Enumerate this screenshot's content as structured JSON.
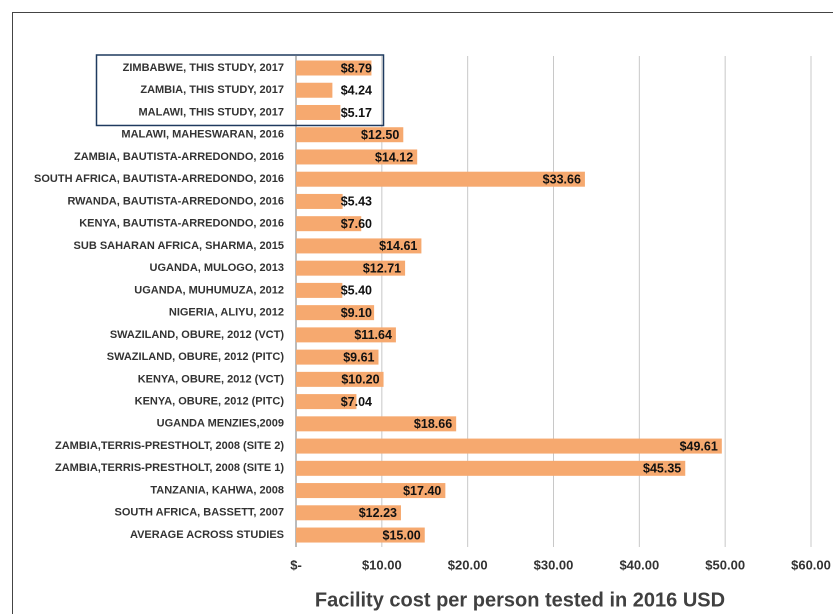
{
  "chart_data": {
    "type": "bar",
    "orientation": "horizontal",
    "x_label": "Facility cost per person tested in 2016 USD",
    "categories": [
      "ZIMBABWE, THIS STUDY, 2017",
      "ZAMBIA, THIS STUDY, 2017",
      "MALAWI, THIS STUDY, 2017",
      "MALAWI, MAHESWARAN, 2016",
      "ZAMBIA, BAUTISTA-ARREDONDO, 2016",
      "SOUTH AFRICA, BAUTISTA-ARREDONDO, 2016",
      "RWANDA, BAUTISTA-ARREDONDO, 2016",
      "KENYA, BAUTISTA-ARREDONDO, 2016",
      "SUB SAHARAN AFRICA, SHARMA, 2015",
      "UGANDA, MULOGO, 2013",
      "UGANDA, MUHUMUZA, 2012",
      "NIGERIA, ALIYU, 2012",
      "SWAZILAND, OBURE, 2012 (VCT)",
      "SWAZILAND, OBURE, 2012 (PITC)",
      "KENYA, OBURE, 2012 (VCT)",
      "KENYA, OBURE, 2012 (PITC)",
      "UGANDA MENZIES,2009",
      "ZAMBIA,TERRIS-PRESTHOLT, 2008 (SITE 2)",
      "ZAMBIA,TERRIS-PRESTHOLT, 2008 (SITE 1)",
      "TANZANIA, KAHWA, 2008",
      "SOUTH AFRICA, BASSETT, 2007",
      "AVERAGE ACROSS STUDIES"
    ],
    "values": [
      8.79,
      4.24,
      5.17,
      12.5,
      14.12,
      33.66,
      5.43,
      7.6,
      14.61,
      12.71,
      5.4,
      9.1,
      11.64,
      9.61,
      10.2,
      7.04,
      18.66,
      49.61,
      45.35,
      17.4,
      12.23,
      15.0
    ],
    "value_labels": [
      "$8.79",
      "$4.24",
      "$5.17",
      "$12.50",
      "$14.12",
      "$33.66",
      "$5.43",
      "$7.60",
      "$14.61",
      "$12.71",
      "$5.40",
      "$9.10",
      "$11.64",
      "$9.61",
      "$10.20",
      "$7.04",
      "$18.66",
      "$49.61",
      "$45.35",
      "$17.40",
      "$12.23",
      "$15.00"
    ],
    "color": "#f6a96f",
    "xlim": [
      0,
      60
    ],
    "xticks": [
      {
        "value": 0,
        "label": "$-"
      },
      {
        "value": 10,
        "label": "$10.00"
      },
      {
        "value": 20,
        "label": "$20.00"
      },
      {
        "value": 30,
        "label": "$30.00"
      },
      {
        "value": 40,
        "label": "$40.00"
      },
      {
        "value": 50,
        "label": "$50.00"
      },
      {
        "value": 60,
        "label": "$60.00"
      }
    ],
    "grid": true
  }
}
